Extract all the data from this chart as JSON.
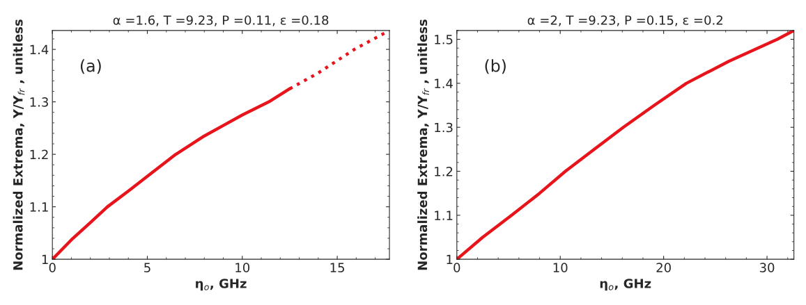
{
  "chart_data": [
    {
      "type": "line",
      "title": "α =1.6, T =9.23, P =0.11, ε =0.18",
      "xlabel": "η$_{o}$, GHz",
      "ylabel": "Normalized Extrema, Y/Y$_{fr}$ , unitless",
      "annotations": [
        "(a)"
      ],
      "xlim": [
        0,
        17.75
      ],
      "xticks": [
        0,
        5,
        10,
        15
      ],
      "ylim": [
        1,
        1.436
      ],
      "yticks": [
        {
          "value": 1,
          "label": "1"
        },
        1.1,
        1.2,
        1.3,
        1.4
      ],
      "grid": false,
      "legend": false,
      "series": [
        {
          "color": "#e8141c",
          "line_style": "solid",
          "x": [
            0,
            1,
            2,
            2.9,
            4,
            5,
            6.5,
            8,
            9,
            10,
            11.4,
            12.5
          ],
          "values": [
            1,
            1.037,
            1.07,
            1.1,
            1.13,
            1.158,
            1.2,
            1.235,
            1.255,
            1.275,
            1.3,
            1.325
          ]
        },
        {
          "color": "#e8141c",
          "line_style": "dotted",
          "x": [
            12.5,
            14,
            15.9,
            17.75
          ],
          "values": [
            1.325,
            1.355,
            1.4,
            1.436
          ]
        }
      ]
    },
    {
      "type": "line",
      "title": "α =2, T =9.23, P =0.15, ε =0.2",
      "xlabel": "η$_{o}$, GHz",
      "ylabel": "Normalized Extrema, Y/Y$_{fr}$ , unitless",
      "annotations": [
        "(b)"
      ],
      "xlim": [
        0,
        32.6
      ],
      "xticks": [
        0,
        10,
        20,
        30
      ],
      "ylim": [
        1,
        1.52
      ],
      "yticks": [
        {
          "value": 1,
          "label": "1"
        },
        1.1,
        1.2,
        1.3,
        1.4,
        1.5
      ],
      "grid": false,
      "legend": false,
      "series": [
        {
          "color": "#e8141c",
          "line_style": "solid",
          "x": [
            0,
            2.5,
            5.3,
            8,
            10.5,
            13.3,
            16.1,
            19.1,
            22.2,
            26.3,
            31.0,
            32.6
          ],
          "values": [
            1,
            1.05,
            1.1,
            1.15,
            1.2,
            1.25,
            1.3,
            1.35,
            1.4,
            1.45,
            1.5,
            1.52
          ]
        }
      ]
    }
  ]
}
